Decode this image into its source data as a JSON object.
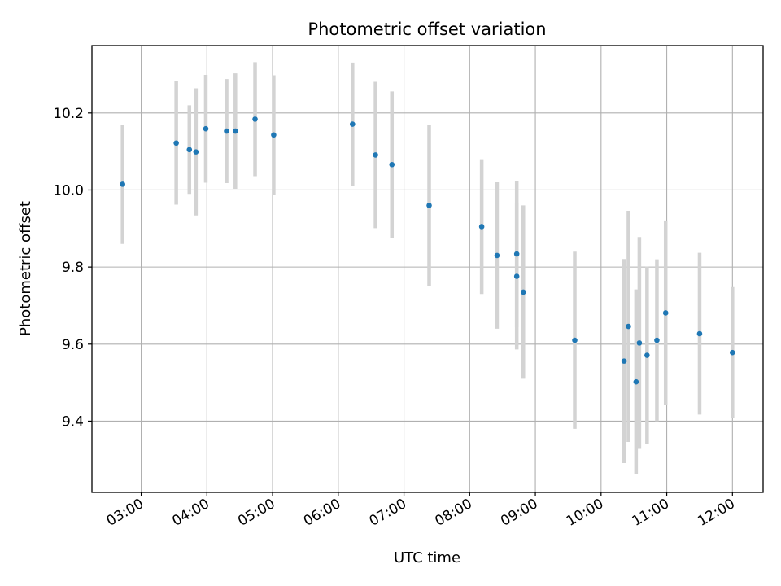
{
  "chart_data": {
    "type": "scatter",
    "title": "Photometric offset variation",
    "xlabel": "UTC time",
    "ylabel": "Photometric offset",
    "x_unit": "time of day (UTC)",
    "x_tick_labels": [
      "03:00",
      "04:00",
      "05:00",
      "06:00",
      "07:00",
      "08:00",
      "09:00",
      "10:00",
      "11:00",
      "12:00"
    ],
    "x_ticks": [
      "03:00",
      "04:00",
      "05:00",
      "06:00",
      "07:00",
      "08:00",
      "09:00",
      "10:00",
      "11:00",
      "12:00"
    ],
    "x_tick_label_rotation": "rotated ~30°",
    "xlim": [
      "02:15",
      "12:28"
    ],
    "y_ticks": [
      9.4,
      9.6,
      9.8,
      10.0,
      10.2
    ],
    "y_tick_labels": [
      "9.4",
      "9.6",
      "9.8",
      "10.0",
      "10.2"
    ],
    "ylim": [
      9.215,
      10.375
    ],
    "grid": true,
    "colors": {
      "points": "#1f77b4",
      "error_bars": "#d3d3d3",
      "grid": "#b0b0b0"
    },
    "series": [
      {
        "points": [
          {
            "x": "02:43",
            "y": 10.015,
            "yerr": 0.155
          },
          {
            "x": "03:32",
            "y": 10.122,
            "yerr": 0.16
          },
          {
            "x": "03:44",
            "y": 10.105,
            "yerr": 0.115
          },
          {
            "x": "03:50",
            "y": 10.099,
            "yerr": 0.165
          },
          {
            "x": "03:59",
            "y": 10.159,
            "yerr": 0.14
          },
          {
            "x": "04:18",
            "y": 10.153,
            "yerr": 0.135
          },
          {
            "x": "04:26",
            "y": 10.153,
            "yerr": 0.15
          },
          {
            "x": "04:44",
            "y": 10.184,
            "yerr": 0.148
          },
          {
            "x": "05:01",
            "y": 10.143,
            "yerr": 0.155
          },
          {
            "x": "06:13",
            "y": 10.171,
            "yerr": 0.16
          },
          {
            "x": "06:34",
            "y": 10.091,
            "yerr": 0.19
          },
          {
            "x": "06:49",
            "y": 10.066,
            "yerr": 0.19
          },
          {
            "x": "07:23",
            "y": 9.96,
            "yerr": 0.21
          },
          {
            "x": "08:11",
            "y": 9.905,
            "yerr": 0.175
          },
          {
            "x": "08:25",
            "y": 9.83,
            "yerr": 0.19
          },
          {
            "x": "08:43",
            "y": 9.834,
            "yerr": 0.19
          },
          {
            "x": "08:43",
            "y": 9.776,
            "yerr": 0.19
          },
          {
            "x": "08:49",
            "y": 9.735,
            "yerr": 0.225
          },
          {
            "x": "09:36",
            "y": 9.61,
            "yerr": 0.23
          },
          {
            "x": "10:21",
            "y": 9.556,
            "yerr": 0.265
          },
          {
            "x": "10:25",
            "y": 9.646,
            "yerr": 0.3
          },
          {
            "x": "10:32",
            "y": 9.502,
            "yerr": 0.24
          },
          {
            "x": "10:35",
            "y": 9.603,
            "yerr": 0.275
          },
          {
            "x": "10:42",
            "y": 9.571,
            "yerr": 0.23
          },
          {
            "x": "10:51",
            "y": 9.61,
            "yerr": 0.21
          },
          {
            "x": "10:59",
            "y": 9.681,
            "yerr": 0.24
          },
          {
            "x": "11:30",
            "y": 9.627,
            "yerr": 0.21
          },
          {
            "x": "12:00",
            "y": 9.578,
            "yerr": 0.17
          }
        ]
      }
    ]
  }
}
